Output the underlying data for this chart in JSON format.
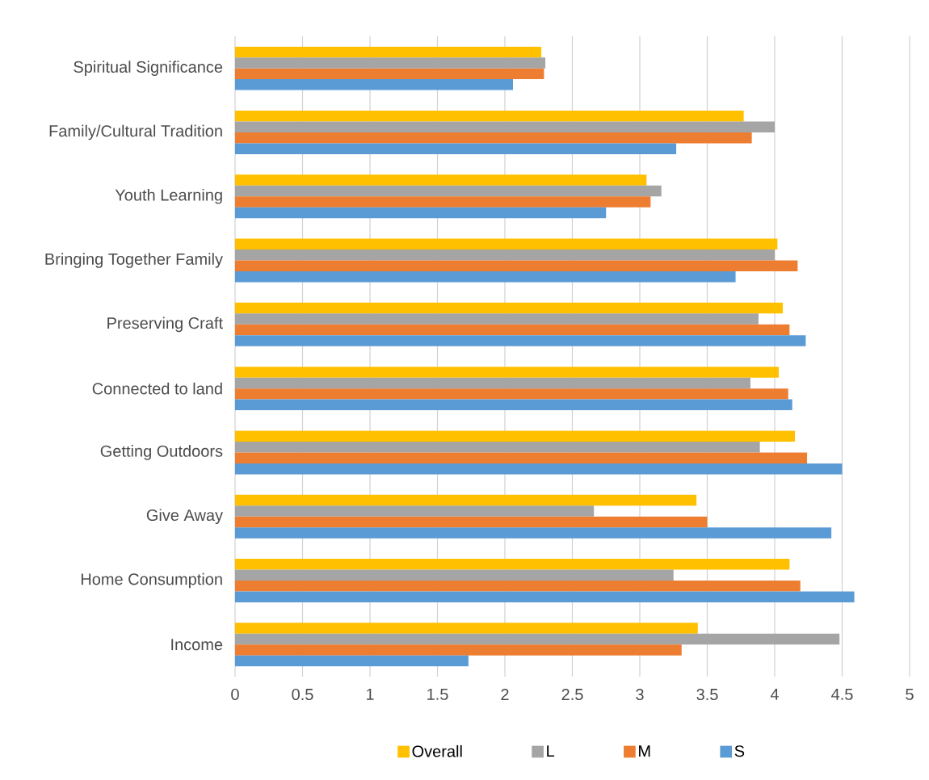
{
  "chart_data": {
    "type": "bar",
    "orientation": "horizontal",
    "grid": "x",
    "legend": "bottom",
    "categories": [
      "Spiritual Significance",
      "Family/Cultural Tradition",
      "Youth Learning",
      "Bringing Together Family",
      "Preserving Craft",
      "Connected to land",
      "Getting Outdoors",
      "Give Away",
      "Home Consumption",
      "Income"
    ],
    "xlim": [
      0,
      5
    ],
    "xticks": [
      0,
      0.5,
      1,
      1.5,
      2,
      2.5,
      3,
      3.5,
      4,
      4.5,
      5
    ],
    "series": [
      {
        "name": "Overall",
        "color": "#ffc000",
        "values": [
          2.27,
          3.77,
          3.05,
          4.02,
          4.06,
          4.03,
          4.15,
          3.42,
          4.11,
          3.43
        ]
      },
      {
        "name": "L",
        "color": "#a5a5a5",
        "values": [
          2.3,
          4.0,
          3.16,
          4.0,
          3.88,
          3.82,
          3.89,
          2.66,
          3.25,
          4.48
        ]
      },
      {
        "name": "M",
        "color": "#ed7d31",
        "values": [
          2.29,
          3.83,
          3.08,
          4.17,
          4.11,
          4.1,
          4.24,
          3.5,
          4.19,
          3.31
        ]
      },
      {
        "name": "S",
        "color": "#5b9bd5",
        "values": [
          2.06,
          3.27,
          2.75,
          3.71,
          4.23,
          4.13,
          4.5,
          4.42,
          4.59,
          1.73
        ]
      }
    ]
  }
}
